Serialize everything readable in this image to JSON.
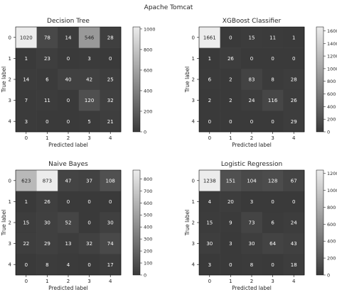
{
  "suptitle": "Apache Tomcat",
  "chart_data": [
    {
      "type": "heatmap",
      "title": "Decision Tree",
      "xlabel": "Predicted label",
      "ylabel": "True label",
      "x_ticks": [
        "0",
        "1",
        "2",
        "3",
        "4"
      ],
      "y_ticks": [
        "0",
        "1",
        "2",
        "3",
        "4"
      ],
      "matrix": [
        [
          1020,
          78,
          14,
          546,
          28
        ],
        [
          1,
          23,
          0,
          3,
          0
        ],
        [
          14,
          6,
          40,
          42,
          25
        ],
        [
          7,
          11,
          0,
          120,
          32
        ],
        [
          3,
          0,
          0,
          5,
          21
        ]
      ],
      "colorbar_ticks": [
        0,
        200,
        400,
        600,
        800,
        1000
      ],
      "colorbar_range": [
        0,
        1020
      ],
      "colormap": "gray"
    },
    {
      "type": "heatmap",
      "title": "XGBoost Classifier",
      "xlabel": "Predicted label",
      "ylabel": "True label",
      "x_ticks": [
        "0",
        "1",
        "2",
        "3",
        "4"
      ],
      "y_ticks": [
        "0",
        "1",
        "2",
        "3",
        "4"
      ],
      "matrix": [
        [
          1661,
          0,
          15,
          11,
          1
        ],
        [
          1,
          26,
          0,
          0,
          0
        ],
        [
          6,
          2,
          83,
          8,
          28
        ],
        [
          2,
          2,
          24,
          116,
          26
        ],
        [
          0,
          0,
          0,
          0,
          29
        ]
      ],
      "colorbar_ticks": [
        0,
        200,
        400,
        600,
        800,
        1000,
        1200,
        1400,
        1600
      ],
      "colorbar_range": [
        0,
        1661
      ],
      "colormap": "gray"
    },
    {
      "type": "heatmap",
      "title": "Naive Bayes",
      "xlabel": "Predicted label",
      "ylabel": "True label",
      "x_ticks": [
        "0",
        "1",
        "2",
        "3",
        "4"
      ],
      "y_ticks": [
        "0",
        "1",
        "2",
        "3",
        "4"
      ],
      "matrix": [
        [
          623,
          873,
          47,
          37,
          108
        ],
        [
          1,
          26,
          0,
          0,
          0
        ],
        [
          15,
          30,
          52,
          0,
          30
        ],
        [
          22,
          29,
          13,
          32,
          74
        ],
        [
          0,
          8,
          4,
          0,
          17
        ]
      ],
      "colorbar_ticks": [
        0,
        100,
        200,
        300,
        400,
        500,
        600,
        700,
        800
      ],
      "colorbar_range": [
        0,
        873
      ],
      "colormap": "gray"
    },
    {
      "type": "heatmap",
      "title": "Logistic Regression",
      "xlabel": "Predicted label",
      "ylabel": "True label",
      "x_ticks": [
        "0",
        "1",
        "2",
        "3",
        "4"
      ],
      "y_ticks": [
        "0",
        "1",
        "2",
        "3",
        "4"
      ],
      "matrix": [
        [
          1238,
          151,
          104,
          128,
          67
        ],
        [
          4,
          20,
          3,
          0,
          0
        ],
        [
          15,
          9,
          73,
          6,
          24
        ],
        [
          30,
          3,
          30,
          64,
          43
        ],
        [
          3,
          0,
          8,
          0,
          18
        ]
      ],
      "colorbar_ticks": [
        0,
        200,
        400,
        600,
        800,
        1000,
        1200
      ],
      "colorbar_range": [
        0,
        1238
      ],
      "colormap": "gray"
    }
  ]
}
